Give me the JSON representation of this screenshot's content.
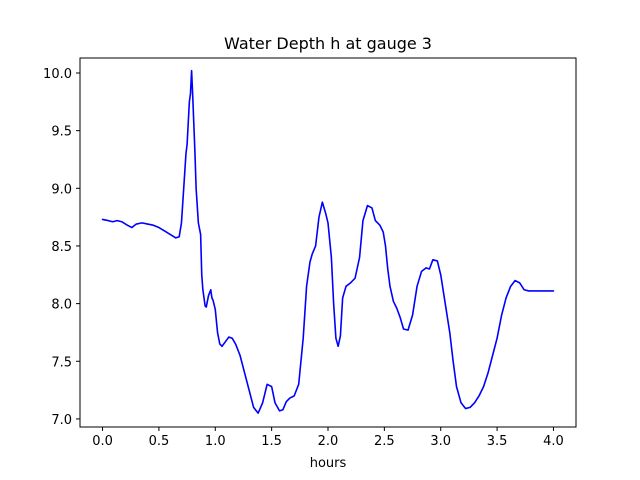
{
  "chart_data": {
    "type": "line",
    "title": "Water Depth h at gauge 3",
    "xlabel": "hours",
    "ylabel": "",
    "xlim": [
      -0.2,
      4.2
    ],
    "ylim": [
      6.93,
      10.13
    ],
    "xticks": [
      {
        "value": 0.0,
        "label": "0.0"
      },
      {
        "value": 0.5,
        "label": "0.5"
      },
      {
        "value": 1.0,
        "label": "1.0"
      },
      {
        "value": 1.5,
        "label": "1.5"
      },
      {
        "value": 2.0,
        "label": "2.0"
      },
      {
        "value": 2.5,
        "label": "2.5"
      },
      {
        "value": 3.0,
        "label": "3.0"
      },
      {
        "value": 3.5,
        "label": "3.5"
      },
      {
        "value": 4.0,
        "label": "4.0"
      }
    ],
    "yticks": [
      {
        "value": 7.0,
        "label": "7.0"
      },
      {
        "value": 7.5,
        "label": "7.5"
      },
      {
        "value": 8.0,
        "label": "8.0"
      },
      {
        "value": 8.5,
        "label": "8.5"
      },
      {
        "value": 9.0,
        "label": "9.0"
      },
      {
        "value": 9.5,
        "label": "9.5"
      },
      {
        "value": 10.0,
        "label": "10.0"
      }
    ],
    "grid": false,
    "legend": "none",
    "series": [
      {
        "color": "#0000ff",
        "x": [
          0.0,
          0.05,
          0.09,
          0.13,
          0.17,
          0.22,
          0.26,
          0.3,
          0.35,
          0.4,
          0.45,
          0.5,
          0.55,
          0.6,
          0.65,
          0.68,
          0.7,
          0.72,
          0.74,
          0.75,
          0.77,
          0.78,
          0.79,
          0.8,
          0.81,
          0.82,
          0.83,
          0.85,
          0.87,
          0.88,
          0.89,
          0.9,
          0.91,
          0.92,
          0.94,
          0.96,
          0.97,
          0.98,
          1.0,
          1.02,
          1.04,
          1.06,
          1.09,
          1.12,
          1.15,
          1.18,
          1.22,
          1.26,
          1.3,
          1.34,
          1.38,
          1.42,
          1.46,
          1.5,
          1.53,
          1.57,
          1.6,
          1.63,
          1.66,
          1.7,
          1.74,
          1.78,
          1.81,
          1.84,
          1.86,
          1.89,
          1.92,
          1.95,
          1.98,
          2.0,
          2.03,
          2.05,
          2.07,
          2.09,
          2.11,
          2.13,
          2.16,
          2.2,
          2.24,
          2.28,
          2.31,
          2.35,
          2.39,
          2.42,
          2.46,
          2.49,
          2.51,
          2.53,
          2.55,
          2.58,
          2.61,
          2.64,
          2.67,
          2.71,
          2.75,
          2.79,
          2.83,
          2.87,
          2.9,
          2.93,
          2.97,
          3.0,
          3.04,
          3.08,
          3.11,
          3.14,
          3.18,
          3.22,
          3.26,
          3.3,
          3.34,
          3.38,
          3.42,
          3.46,
          3.5,
          3.54,
          3.58,
          3.62,
          3.66,
          3.7,
          3.74,
          3.78,
          3.82,
          3.86,
          3.9,
          3.94,
          3.98,
          4.0
        ],
        "values": [
          8.73,
          8.72,
          8.71,
          8.72,
          8.71,
          8.68,
          8.66,
          8.69,
          8.7,
          8.69,
          8.68,
          8.66,
          8.63,
          8.6,
          8.57,
          8.58,
          8.7,
          9.0,
          9.3,
          9.38,
          9.75,
          9.82,
          10.02,
          9.8,
          9.55,
          9.3,
          9.0,
          8.7,
          8.6,
          8.25,
          8.12,
          8.05,
          7.98,
          7.97,
          8.07,
          8.12,
          8.05,
          8.03,
          7.95,
          7.75,
          7.65,
          7.63,
          7.67,
          7.71,
          7.7,
          7.65,
          7.55,
          7.4,
          7.25,
          7.1,
          7.05,
          7.14,
          7.3,
          7.28,
          7.14,
          7.07,
          7.08,
          7.15,
          7.18,
          7.2,
          7.3,
          7.7,
          8.15,
          8.36,
          8.43,
          8.5,
          8.75,
          8.88,
          8.78,
          8.7,
          8.4,
          8.0,
          7.7,
          7.63,
          7.72,
          8.05,
          8.15,
          8.18,
          8.22,
          8.4,
          8.72,
          8.85,
          8.83,
          8.72,
          8.68,
          8.62,
          8.5,
          8.3,
          8.15,
          8.02,
          7.96,
          7.88,
          7.78,
          7.77,
          7.9,
          8.15,
          8.28,
          8.31,
          8.3,
          8.38,
          8.37,
          8.25,
          8.0,
          7.75,
          7.5,
          7.28,
          7.14,
          7.09,
          7.1,
          7.14,
          7.2,
          7.28,
          7.4,
          7.55,
          7.7,
          7.9,
          8.05,
          8.15,
          8.2,
          8.18,
          8.12,
          8.11,
          8.11,
          8.11,
          8.11,
          8.11,
          8.11,
          8.11
        ]
      }
    ]
  }
}
